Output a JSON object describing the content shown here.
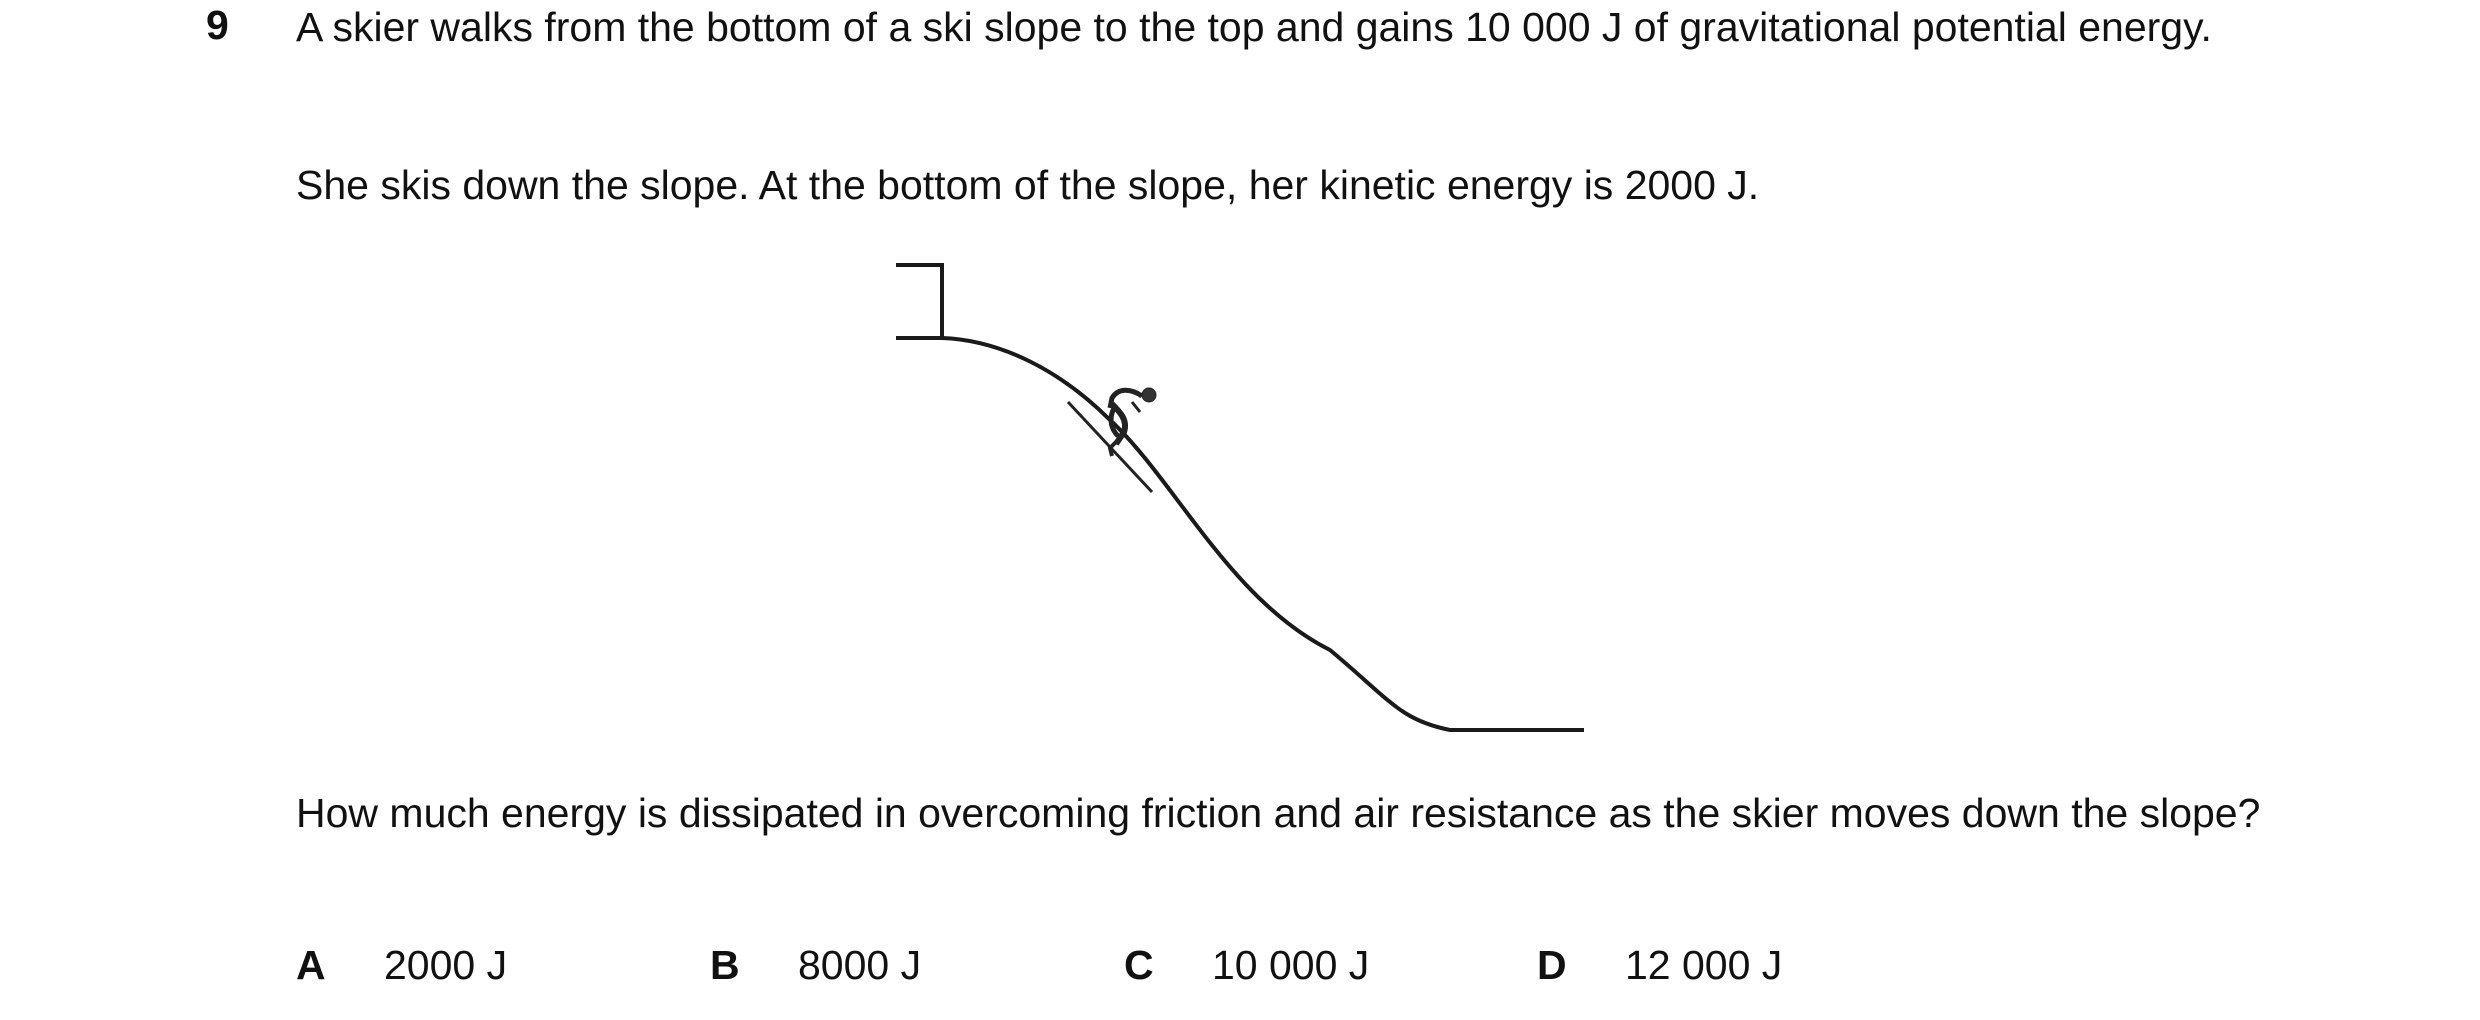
{
  "question": {
    "number": "9",
    "para1": "A skier walks from the bottom of a ski slope to the top and gains 10 000 J of gravitational potential energy.",
    "para2": "She skis down the slope. At the bottom of the slope, her kinetic energy is 2000 J.",
    "prompt": "How much energy is dissipated in overcoming friction and air resistance as the skier moves down the slope?"
  },
  "options": [
    {
      "letter": "A",
      "value": "2000 J"
    },
    {
      "letter": "B",
      "value": "8000 J"
    },
    {
      "letter": "C",
      "value": "10 000 J"
    },
    {
      "letter": "D",
      "value": "12 000 J"
    }
  ]
}
